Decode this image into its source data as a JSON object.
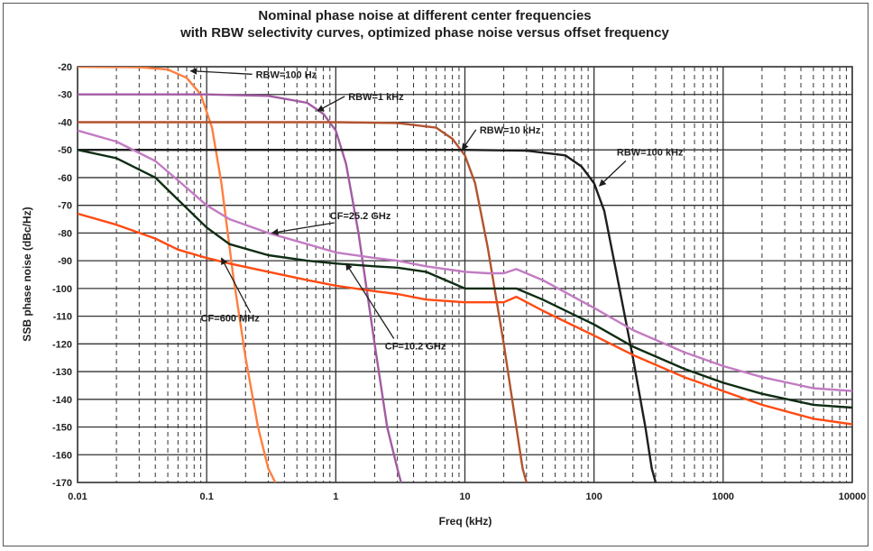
{
  "chart_data": {
    "type": "line",
    "title": "Nominal phase noise at different center frequencies",
    "subtitle": "with RBW selectivity curves, optimized phase noise versus offset frequency",
    "xlabel": "Freq (kHz)",
    "ylabel": "SSB phase noise (dBc/Hz)",
    "x_scale": "log",
    "xlim": [
      0.01,
      10000
    ],
    "ylim": [
      -170,
      -20
    ],
    "x_ticks": [
      "0.01",
      "0.1",
      "1",
      "10",
      "100",
      "1000",
      "10000"
    ],
    "y_ticks": [
      "-20",
      "-30",
      "-40",
      "-50",
      "-60",
      "-70",
      "-80",
      "-90",
      "-100",
      "-110",
      "-120",
      "-130",
      "-140",
      "-150",
      "-160",
      "-170"
    ],
    "grid": true,
    "legend": "none",
    "series": [
      {
        "color": "#ff7f3f",
        "x": [
          0.01,
          0.03,
          0.05,
          0.07,
          0.09,
          0.11,
          0.13,
          0.16,
          0.2,
          0.25,
          0.3,
          0.34
        ],
        "y": [
          -20,
          -20.2,
          -21,
          -24,
          -30,
          -42,
          -62,
          -95,
          -125,
          -150,
          -165,
          -170
        ]
      },
      {
        "color": "#a25ba2",
        "x": [
          0.01,
          0.1,
          0.3,
          0.6,
          0.8,
          1.0,
          1.2,
          1.5,
          2.0,
          2.5,
          3.0,
          3.2
        ],
        "y": [
          -30,
          -30,
          -30.5,
          -33,
          -37,
          -43,
          -55,
          -80,
          -120,
          -150,
          -165,
          -170
        ]
      },
      {
        "color": "#b3532e",
        "x": [
          0.01,
          1,
          3,
          6,
          8,
          10,
          12,
          15,
          20,
          25,
          28,
          30
        ],
        "y": [
          -40,
          -40,
          -40.3,
          -42,
          -46,
          -52,
          -62,
          -85,
          -120,
          -150,
          -165,
          -170
        ]
      },
      {
        "color": "#1e1e1e",
        "x": [
          0.01,
          10,
          30,
          60,
          80,
          100,
          120,
          150,
          200,
          250,
          280,
          300
        ],
        "y": [
          -50,
          -50,
          -50.3,
          -52,
          -56,
          -62,
          -72,
          -95,
          -125,
          -150,
          -165,
          -170
        ]
      },
      {
        "color": "#c37bc3",
        "x": [
          0.01,
          0.02,
          0.04,
          0.06,
          0.1,
          0.15,
          0.3,
          0.6,
          1,
          2,
          3,
          5,
          10,
          15,
          20,
          25,
          40,
          100,
          200,
          500,
          1000,
          2000,
          5000,
          10000
        ],
        "y": [
          -43,
          -47,
          -54,
          -61,
          -70,
          -75,
          -80,
          -84,
          -87,
          -89,
          -90,
          -92,
          -94,
          -94.5,
          -94.5,
          -93,
          -97,
          -107,
          -115,
          -123,
          -128,
          -132,
          -136,
          -137
        ]
      },
      {
        "color": "#0f2d14",
        "x": [
          0.01,
          0.02,
          0.04,
          0.06,
          0.1,
          0.15,
          0.3,
          0.6,
          1,
          2,
          3,
          5,
          10,
          15,
          20,
          25,
          40,
          100,
          200,
          500,
          1000,
          2000,
          5000,
          10000
        ],
        "y": [
          -50,
          -53,
          -60,
          -68,
          -78,
          -84,
          -88,
          -90,
          -91,
          -92,
          -92.5,
          -94,
          -100,
          -100,
          -100,
          -100,
          -104,
          -113,
          -121,
          -129,
          -134,
          -138,
          -142,
          -143
        ]
      },
      {
        "color": "#ff4a12",
        "x": [
          0.01,
          0.02,
          0.04,
          0.06,
          0.1,
          0.15,
          0.3,
          0.6,
          1,
          2,
          3,
          5,
          10,
          15,
          20,
          25,
          40,
          100,
          200,
          500,
          1000,
          2000,
          5000,
          10000
        ],
        "y": [
          -73,
          -77,
          -82,
          -86,
          -89,
          -91,
          -94,
          -97,
          -99,
          -101,
          -102,
          -104,
          -105,
          -105,
          -105,
          -103,
          -108,
          -117,
          -124,
          -132,
          -137,
          -142,
          -147,
          -149
        ]
      }
    ],
    "annotations": [
      {
        "text": "RBW=100 Hz",
        "x": 0.24,
        "y": -24
      },
      {
        "text": "RBW=1 kHz",
        "x": 1.25,
        "y": -32
      },
      {
        "text": "RBW=10 kHz",
        "x": 13,
        "y": -44
      },
      {
        "text": "RBW=100 kHz",
        "x": 150,
        "y": -52
      },
      {
        "text": "CF=25.2 GHz",
        "x": 0.9,
        "y": -75
      },
      {
        "text": "CF=600 MHz",
        "x": 0.09,
        "y": -112
      },
      {
        "text": "CF=10.2 GHz",
        "x": 2.4,
        "y": -122
      }
    ]
  }
}
